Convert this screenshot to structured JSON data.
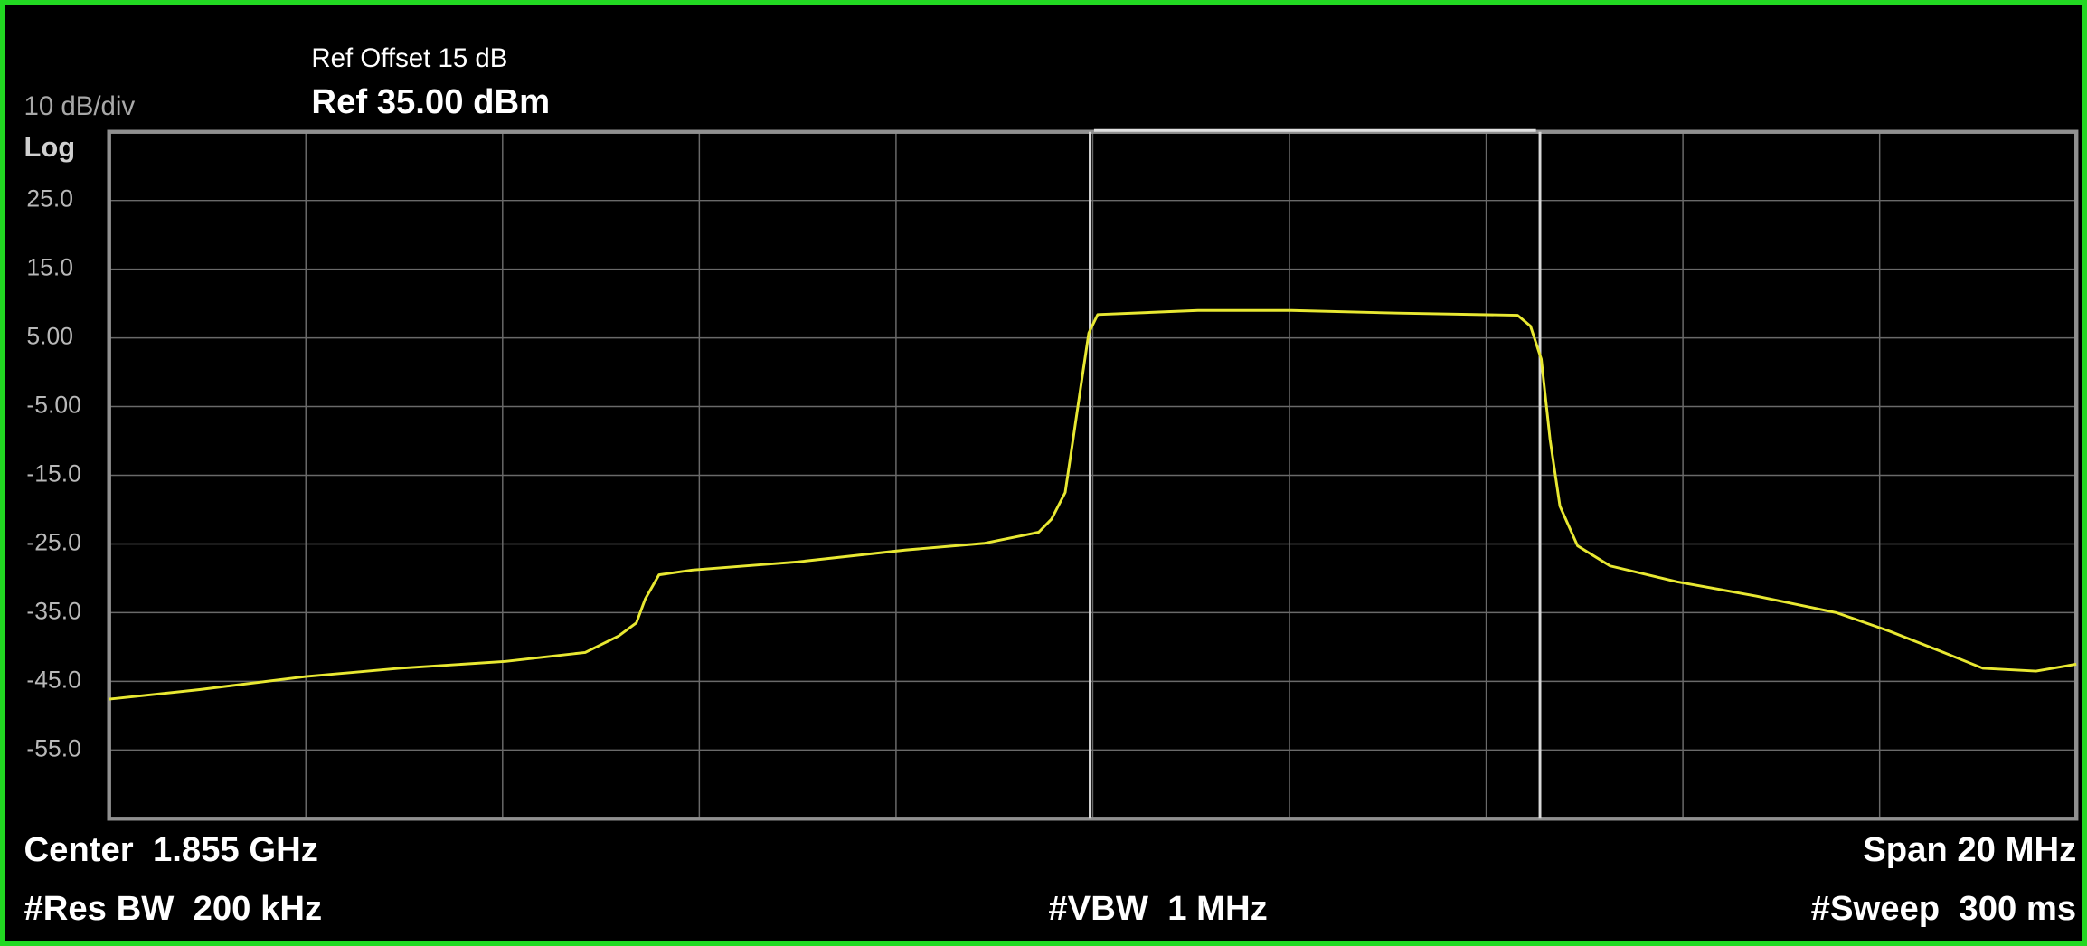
{
  "chart_data": {
    "type": "line",
    "ref_offset": "Ref Offset 15 dB",
    "ref_level": "Ref 35.00 dBm",
    "scale_label": "10 dB/div",
    "scale_type": "Log",
    "center": "Center  1.855 GHz",
    "span": "Span 20 MHz",
    "res_bw": "#Res BW  200 kHz",
    "vbw": "#VBW  1 MHz",
    "sweep": "#Sweep  300 ms",
    "color": "#e8e832",
    "grid": true,
    "xlim": [
      1845,
      1865
    ],
    "xticks": [
      1845,
      1847,
      1849,
      1851,
      1853,
      1855,
      1857,
      1859,
      1861,
      1863,
      1865
    ],
    "ylim": [
      -65,
      35
    ],
    "yticks": [
      {
        "value": 25,
        "label": "25.0"
      },
      {
        "value": 15,
        "label": "15.0"
      },
      {
        "value": 5,
        "label": "5.00"
      },
      {
        "value": -5,
        "label": "-5.00"
      },
      {
        "value": -15,
        "label": "-15.0"
      },
      {
        "value": -25,
        "label": "-25.0"
      },
      {
        "value": -35,
        "label": "-35.0"
      },
      {
        "value": -45,
        "label": "-45.0"
      },
      {
        "value": -55,
        "label": "-55.0"
      }
    ],
    "x": [
      1845.0,
      1845.92,
      1847.0,
      1847.95,
      1849.03,
      1849.84,
      1850.18,
      1850.36,
      1850.45,
      1850.59,
      1850.93,
      1852.01,
      1853.09,
      1853.9,
      1854.45,
      1854.58,
      1854.72,
      1854.8,
      1854.88,
      1854.96,
      1855.05,
      1856.07,
      1857.02,
      1858.1,
      1859.32,
      1859.45,
      1859.56,
      1859.65,
      1859.75,
      1859.93,
      1860.26,
      1860.94,
      1861.75,
      1862.56,
      1863.1,
      1863.65,
      1864.05,
      1864.59,
      1865.0
    ],
    "values": [
      -47.6,
      -46.2,
      -44.3,
      -43.1,
      -42.1,
      -40.8,
      -38.4,
      -36.5,
      -33,
      -29.5,
      -28.8,
      -27.6,
      -25.9,
      -24.9,
      -23.3,
      -21.4,
      -17.5,
      -9.8,
      -2,
      5.7,
      8.4,
      9.0,
      9.0,
      8.6,
      8.3,
      6.7,
      1.9,
      -9.8,
      -19.5,
      -25.3,
      -28.2,
      -30.5,
      -32.6,
      -35,
      -37.7,
      -40.8,
      -43.1,
      -43.5,
      -42.5
    ]
  }
}
